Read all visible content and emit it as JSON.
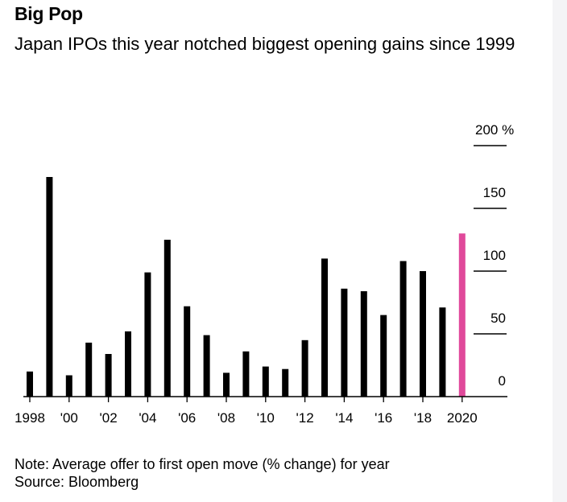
{
  "title": "Big Pop",
  "subtitle": "Japan IPOs this year notched biggest opening gains since 1999",
  "note": "Note: Average offer to first open move (% change) for year",
  "source": "Source: Bloomberg",
  "colors": {
    "bar": "#000000",
    "highlight": "#e0499b",
    "axis": "#000000"
  },
  "chart_data": {
    "type": "bar",
    "title": "",
    "xlabel": "",
    "ylabel": "",
    "ylim": [
      0,
      200
    ],
    "y_ticks": [
      0,
      50,
      100,
      150,
      200
    ],
    "y_tick_labels": [
      "0",
      "50",
      "100",
      "150",
      "200 %"
    ],
    "x_tick_labels": [
      "1998",
      "'00",
      "'02",
      "'04",
      "'06",
      "'08",
      "'10",
      "'12",
      "'14",
      "'16",
      "'18",
      "2020"
    ],
    "categories": [
      "1998",
      "1999",
      "2000",
      "2001",
      "2002",
      "2003",
      "2004",
      "2005",
      "2006",
      "2007",
      "2008",
      "2009",
      "2010",
      "2011",
      "2012",
      "2013",
      "2014",
      "2015",
      "2016",
      "2017",
      "2018",
      "2019",
      "2020"
    ],
    "values": [
      20,
      175,
      17,
      43,
      34,
      52,
      99,
      125,
      72,
      49,
      19,
      36,
      24,
      22,
      45,
      110,
      86,
      84,
      65,
      108,
      100,
      71,
      130
    ],
    "highlight": "2020",
    "grid": false
  }
}
